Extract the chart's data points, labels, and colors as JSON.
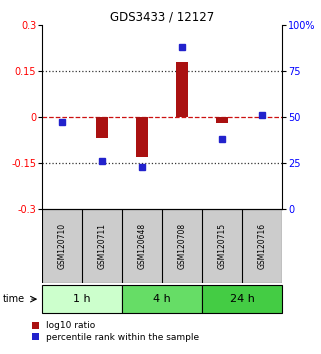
{
  "title": "GDS3433 / 12127",
  "samples": [
    "GSM120710",
    "GSM120711",
    "GSM120648",
    "GSM120708",
    "GSM120715",
    "GSM120716"
  ],
  "log10_ratio": [
    0.0,
    -0.07,
    -0.13,
    0.18,
    -0.02,
    0.0
  ],
  "percentile_rank": [
    47,
    26,
    23,
    88,
    38,
    51
  ],
  "groups": [
    {
      "label": "1 h",
      "indices": [
        0,
        1
      ],
      "color": "#ccffcc"
    },
    {
      "label": "4 h",
      "indices": [
        2,
        3
      ],
      "color": "#66dd66"
    },
    {
      "label": "24 h",
      "indices": [
        4,
        5
      ],
      "color": "#44cc44"
    }
  ],
  "bar_color": "#aa1111",
  "dot_color": "#2222cc",
  "ylim_left": [
    -0.3,
    0.3
  ],
  "ylim_right": [
    0,
    100
  ],
  "yticks_left": [
    -0.3,
    -0.15,
    0.0,
    0.15,
    0.3
  ],
  "yticks_right": [
    0,
    25,
    50,
    75,
    100
  ],
  "hline_color": "#cc1111",
  "dotted_color": "#333333",
  "bg_color": "#ffffff",
  "plot_bg": "#ffffff",
  "legend_red_label": "log10 ratio",
  "legend_blue_label": "percentile rank within the sample",
  "time_label": "time",
  "sample_bg": "#cccccc",
  "bar_width": 0.3
}
